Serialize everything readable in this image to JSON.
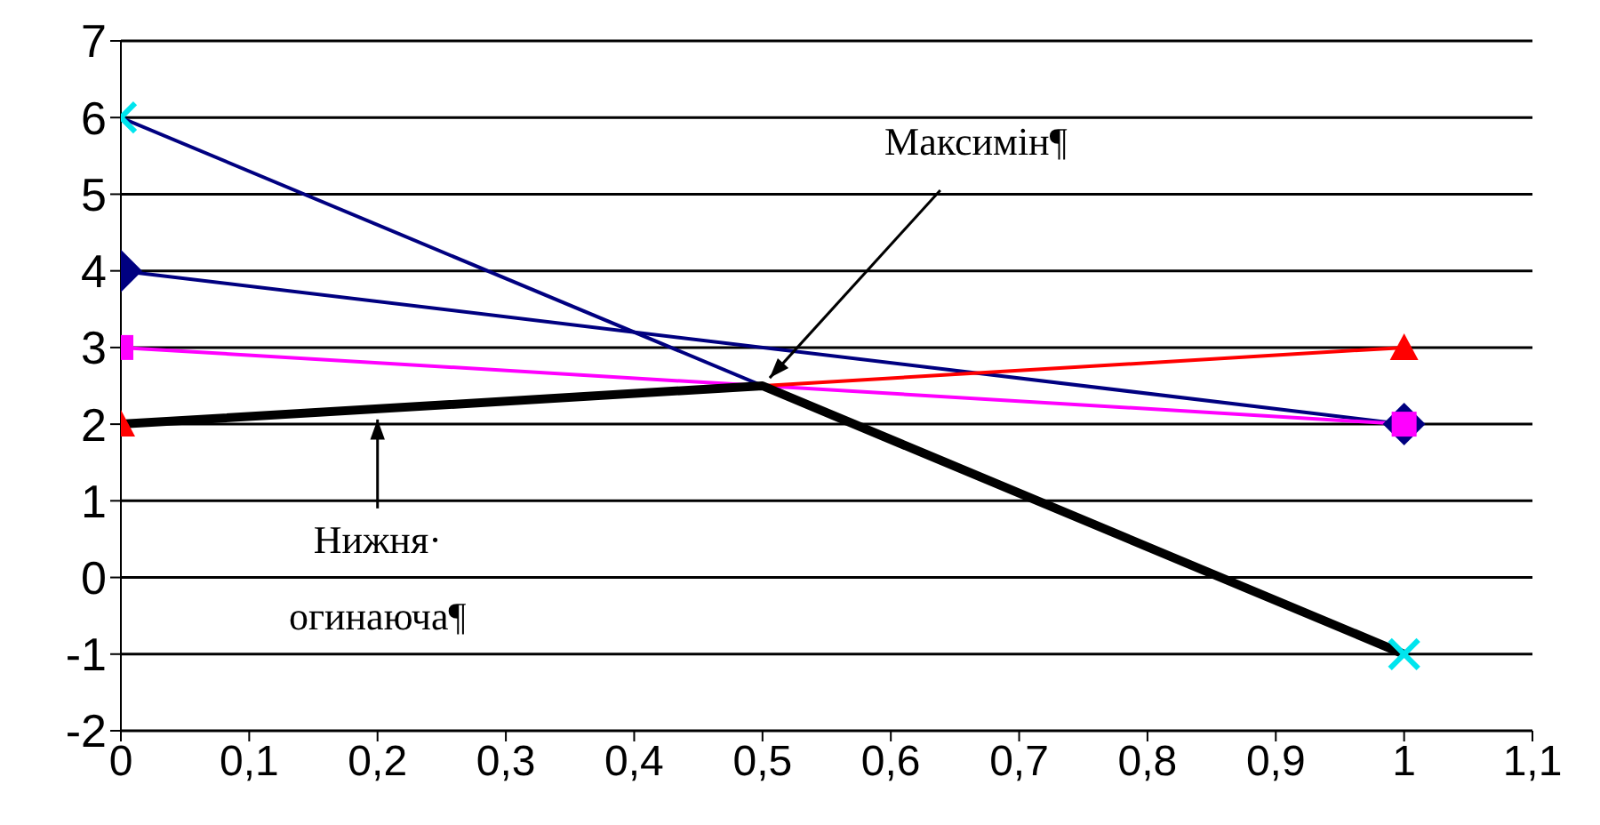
{
  "chart_data": {
    "type": "line",
    "x": [
      0,
      1
    ],
    "series": [
      {
        "color": "#000080",
        "colors": [
          "#00e5ee",
          "#00e5ee"
        ],
        "marker": "cross",
        "values": [
          6,
          -1
        ]
      },
      {
        "color": "#000080",
        "marker": "diamond",
        "values": [
          4,
          2
        ]
      },
      {
        "color": "#ff00ff",
        "marker": "square",
        "values": [
          3,
          2
        ]
      },
      {
        "color": "#ff0000",
        "marker": "triangle",
        "values": [
          2,
          3
        ]
      },
      {
        "color": "#000000",
        "marker": "none",
        "x": [
          0,
          0.5,
          1
        ],
        "values": [
          2,
          2.5,
          -1
        ]
      }
    ],
    "xlim": [
      0,
      1.1
    ],
    "xticks": [
      {
        "value": 0,
        "label": "0"
      },
      {
        "value": 0.1,
        "label": "0,1"
      },
      {
        "value": 0.2,
        "label": "0,2"
      },
      {
        "value": 0.3,
        "label": "0,3"
      },
      {
        "value": 0.4,
        "label": "0,4"
      },
      {
        "value": 0.5,
        "label": "0,5"
      },
      {
        "value": 0.6,
        "label": "0,6"
      },
      {
        "value": 0.7,
        "label": "0,7"
      },
      {
        "value": 0.8,
        "label": "0,8"
      },
      {
        "value": 0.9,
        "label": "0,9"
      },
      {
        "value": 1,
        "label": "1"
      },
      {
        "value": 1.1,
        "label": "1,1"
      }
    ],
    "ylim": [
      -2,
      7
    ],
    "yticks": [
      -2,
      -1,
      0,
      1,
      2,
      3,
      4,
      5,
      6,
      7
    ],
    "grid": "y",
    "legend": false,
    "line_style": "solid",
    "annotations": [
      {
        "text": "Максимін¶",
        "x": 0.5,
        "y": 2.5
      },
      {
        "text": "Нижня·\nогинаюча¶",
        "x": 0.2,
        "y": 2.2
      }
    ]
  }
}
